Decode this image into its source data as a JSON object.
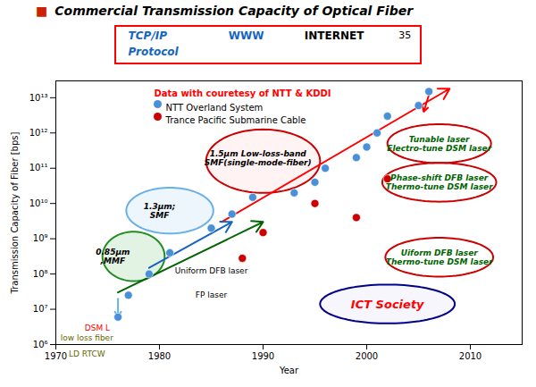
{
  "chart_data": {
    "type": "scatter",
    "title": "Commercial Transmission Capacity of Optical Fiber",
    "title_marker": {
      "text": "■",
      "color": "#cc2200"
    },
    "box": {
      "color": "#ff0000",
      "rows": [
        [
          {
            "text": "TCP/IP",
            "color": "#1565C0"
          },
          {
            "text": "WWW",
            "color": "#1565C0"
          },
          {
            "text": "INTERNET",
            "color": "#000000"
          },
          {
            "text": "35",
            "color": "#000000"
          }
        ],
        [
          {
            "text": "Protocol",
            "color": "#1565C0"
          }
        ]
      ]
    },
    "xlabel": "Year",
    "ylabel": "Transmission Capacity of Fiber [bps]",
    "log": "y",
    "xlim": [
      1970,
      2015
    ],
    "ylim": [
      1000000.0,
      30000000000000.0
    ],
    "xticks": [
      1970,
      1980,
      1990,
      2000,
      2010
    ],
    "yticks": [
      {
        "value": 1000000.0,
        "label": "10⁶"
      },
      {
        "value": 10000000.0,
        "label": "10⁷"
      },
      {
        "value": 100000000.0,
        "label": "10⁸"
      },
      {
        "value": 1000000000.0,
        "label": "10⁹"
      },
      {
        "value": 10000000000.0,
        "label": "10¹⁰"
      },
      {
        "value": 100000000000.0,
        "label": "10¹¹"
      },
      {
        "value": 1000000000000.0,
        "label": "10¹²"
      },
      {
        "value": 10000000000000.0,
        "label": "10¹³"
      }
    ],
    "grid": false,
    "legend": "upper left",
    "note": {
      "text": "Data with couretesy of NTT & KDDI",
      "color": "#ff0000"
    },
    "series": [
      {
        "name": "NTT Overland System",
        "color": "#4a90d9",
        "x": [
          1976,
          1977,
          1979,
          1981,
          1985,
          1987,
          1989,
          1993,
          1995,
          1996,
          1999,
          2000,
          2001,
          2002,
          2005,
          2006
        ],
        "values": [
          6000000.0,
          25000000.0,
          100000000.0,
          400000000.0,
          2000000000.0,
          5000000000.0,
          15000000000.0,
          20000000000.0,
          40000000000.0,
          100000000000.0,
          200000000000.0,
          400000000000.0,
          1000000000000.0,
          3000000000000.0,
          6000000000000.0,
          15000000000000.0
        ]
      },
      {
        "name": "Trance Pacific Submarine Cable",
        "color": "#cc0000",
        "x": [
          1988,
          1990,
          1995,
          1999,
          2002
        ],
        "values": [
          280000000.0,
          1500000000.0,
          10000000000.0,
          4000000000.0,
          50000000000.0
        ]
      }
    ],
    "arrows": [
      {
        "x1": 1986,
        "y1": 3000000000.0,
        "x2": 2008,
        "y2": 18000000000000.0,
        "color": "#ff0000"
      },
      {
        "x1": 1976,
        "y1": 30000000.0,
        "x2": 1990,
        "y2": 3000000000.0,
        "color": "#006400"
      },
      {
        "x1": 1979,
        "y1": 150000000.0,
        "x2": 1987,
        "y2": 3000000000.0,
        "color": "#1565C0"
      },
      {
        "x1": 2006,
        "y1": 12000000000000.0,
        "x2": 2005.5,
        "y2": 4000000000000.0,
        "color": "#ff0000"
      },
      {
        "x1": 1976,
        "y1": 20000000.0,
        "x2": 1976,
        "y2": 6000000.0,
        "color": "#6ab0e8"
      }
    ],
    "ellipses": [
      {
        "x": 1977.5,
        "y_log": 8.5,
        "x_radius": 3.0,
        "y_radius_log": 0.7,
        "color": "#228B22",
        "fill": "#b8e0b8",
        "text": "0.85µm\n,MMF",
        "text_x": 1975.5,
        "text_y_log": 8.5,
        "text_color": "#000000"
      },
      {
        "x": 1981,
        "y_log": 9.8,
        "x_radius": 4.2,
        "y_radius_log": 0.65,
        "color": "#6ab0e8",
        "fill": "#d0e8f8",
        "text": "1.3µm;\nSMF",
        "text_x": 1980,
        "text_y_log": 9.8,
        "text_color": "#000000"
      },
      {
        "x": 1990,
        "y_log": 11.2,
        "x_radius": 5.5,
        "y_radius_log": 0.9,
        "color": "#cc0000",
        "fill": "#ffe0e0",
        "text": "1.5µm Low-loss-band\nSMF(single-mode-fiber)",
        "text_x": 1989.5,
        "text_y_log": 11.3,
        "text_color": "#000000"
      },
      {
        "x": 2002,
        "y_log": 7.15,
        "x_radius": 6.5,
        "y_radius_log": 0.55,
        "color": "#00008B",
        "fill": "#e8e8f8",
        "text": "ICT Society",
        "text_x": 2002,
        "text_y_log": 7.15,
        "text_color": "#ff0000"
      },
      {
        "x": 2007,
        "y": 500000000000.0,
        "x_radius": 5,
        "y_radius_log": 0.55,
        "color": "#cc0000",
        "fill": "#ffffff",
        "text": "Tunable laser\nElectro-tune DSM laser",
        "text_color": "#006400"
      },
      {
        "x": 2007,
        "y": 40000000000.0,
        "x_radius": 5.5,
        "y_radius_log": 0.55,
        "color": "#cc0000",
        "fill": "#ffffff",
        "text": "Phase-shift DFB laser\nThermo-tune DSM laser",
        "text_color": "#006400"
      },
      {
        "x": 2007,
        "y": 300000000.0,
        "x_radius": 5.2,
        "y_radius_log": 0.55,
        "color": "#cc0000",
        "fill": "#ffffff",
        "text": "Uiform DFB laser\nThermo-tune DSM laser",
        "text_color": "#006400"
      }
    ],
    "annotations": [
      {
        "text": "Uniform DFB laser",
        "x": 1985,
        "y": 120000000.0,
        "color": "#000000"
      },
      {
        "text": "FP laser",
        "x": 1985,
        "y": 25000000.0,
        "color": "#000000"
      },
      {
        "text": "DSM L",
        "x": 1974,
        "y": 3000000.0,
        "color": "#ff0000"
      },
      {
        "text": "low loss fiber",
        "x": 1973,
        "y": 1500000.0,
        "color": "#666600"
      },
      {
        "text": "LD RTCW",
        "x": 1973,
        "y": 800000.0,
        "color": "#666600"
      }
    ]
  }
}
